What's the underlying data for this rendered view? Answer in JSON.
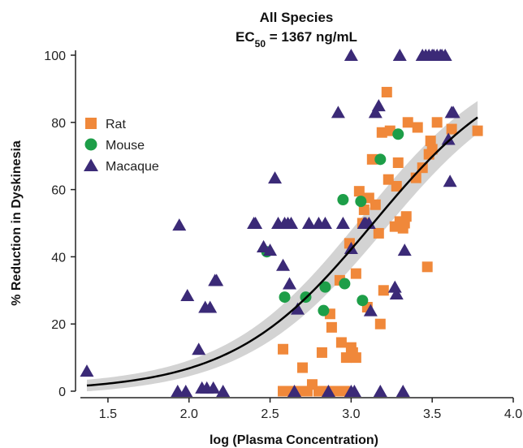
{
  "chart_data": {
    "type": "scatter",
    "title": "All Species",
    "subtitle": {
      "prefix": "EC",
      "subscript": "50",
      "suffix": " = 1367 ng/mL"
    },
    "xlabel": "log (Plasma Concentration)",
    "ylabel": "% Reduction in Dyskinesia",
    "xlim": [
      1.3,
      4.0
    ],
    "ylim": [
      0,
      100
    ],
    "x_ticks": [
      1.5,
      2.0,
      2.5,
      3.0,
      3.5,
      4.0
    ],
    "x_tick_labels": [
      "1.5",
      "2.0",
      "2.5",
      "3.0",
      "3.5",
      "4.0"
    ],
    "y_ticks": [
      0,
      20,
      40,
      60,
      80,
      100
    ],
    "y_tick_labels": [
      "0",
      "20",
      "40",
      "60",
      "80",
      "100"
    ],
    "legend_position": "top-left",
    "fit": {
      "model": "sigmoid",
      "ec50_log": 3.136,
      "hill": 1.0,
      "top": 100,
      "bottom": 0,
      "x_range": [
        1.37,
        3.78
      ],
      "color": "#000000",
      "band_color": "#d3d3d3",
      "band_halfwidth": 5
    },
    "series": [
      {
        "name": "Rat",
        "marker": "square",
        "color": "#f0883a",
        "points": [
          [
            2.58,
            12.5
          ],
          [
            2.58,
            0
          ],
          [
            2.63,
            0
          ],
          [
            2.68,
            0
          ],
          [
            2.7,
            7
          ],
          [
            2.73,
            0
          ],
          [
            2.76,
            2
          ],
          [
            2.8,
            0
          ],
          [
            2.82,
            11.5
          ],
          [
            2.85,
            0
          ],
          [
            2.87,
            23
          ],
          [
            2.88,
            19
          ],
          [
            2.91,
            0
          ],
          [
            2.93,
            33
          ],
          [
            2.94,
            14.5
          ],
          [
            2.96,
            0
          ],
          [
            2.97,
            10
          ],
          [
            2.99,
            44
          ],
          [
            3.0,
            13
          ],
          [
            3.01,
            11.5
          ],
          [
            3.03,
            10
          ],
          [
            3.03,
            35
          ],
          [
            3.05,
            59.5
          ],
          [
            3.07,
            50
          ],
          [
            3.08,
            54
          ],
          [
            3.1,
            25
          ],
          [
            3.11,
            57.5
          ],
          [
            3.13,
            69
          ],
          [
            3.15,
            55.5
          ],
          [
            3.17,
            47
          ],
          [
            3.18,
            20
          ],
          [
            3.19,
            77
          ],
          [
            3.2,
            30
          ],
          [
            3.22,
            89
          ],
          [
            3.23,
            63
          ],
          [
            3.24,
            77.5
          ],
          [
            3.27,
            49
          ],
          [
            3.28,
            61
          ],
          [
            3.29,
            68
          ],
          [
            3.3,
            50.5
          ],
          [
            3.32,
            48.5
          ],
          [
            3.33,
            50
          ],
          [
            3.34,
            52
          ],
          [
            3.35,
            80
          ],
          [
            3.4,
            63.5
          ],
          [
            3.41,
            78.5
          ],
          [
            3.44,
            66.5
          ],
          [
            3.47,
            37
          ],
          [
            3.48,
            70.5
          ],
          [
            3.49,
            74.5
          ],
          [
            3.5,
            72
          ],
          [
            3.53,
            80
          ],
          [
            3.62,
            78
          ],
          [
            3.78,
            77.5
          ]
        ]
      },
      {
        "name": "Mouse",
        "marker": "circle",
        "color": "#1d9e48",
        "points": [
          [
            2.48,
            41.5
          ],
          [
            2.59,
            28
          ],
          [
            2.72,
            28
          ],
          [
            2.83,
            24
          ],
          [
            2.84,
            31
          ],
          [
            2.95,
            57
          ],
          [
            2.96,
            32
          ],
          [
            3.06,
            56.5
          ],
          [
            3.07,
            27
          ],
          [
            3.18,
            69
          ],
          [
            3.29,
            76.5
          ]
        ]
      },
      {
        "name": "Macaque",
        "marker": "triangle",
        "color": "#3b2a77",
        "points": [
          [
            1.37,
            6
          ],
          [
            1.94,
            49.5
          ],
          [
            1.93,
            0
          ],
          [
            1.99,
            28.5
          ],
          [
            1.98,
            0
          ],
          [
            2.06,
            12.5
          ],
          [
            2.08,
            1
          ],
          [
            2.1,
            25
          ],
          [
            2.11,
            1
          ],
          [
            2.13,
            25
          ],
          [
            2.15,
            1
          ],
          [
            2.16,
            33
          ],
          [
            2.17,
            33
          ],
          [
            2.21,
            0
          ],
          [
            2.4,
            50
          ],
          [
            2.41,
            50
          ],
          [
            2.46,
            43
          ],
          [
            2.46,
            43
          ],
          [
            2.5,
            42
          ],
          [
            2.53,
            63.5
          ],
          [
            2.55,
            50
          ],
          [
            2.58,
            37.5
          ],
          [
            2.59,
            50
          ],
          [
            2.61,
            50
          ],
          [
            2.62,
            32
          ],
          [
            2.63,
            50
          ],
          [
            2.65,
            0
          ],
          [
            2.67,
            24.5
          ],
          [
            2.74,
            50
          ],
          [
            2.8,
            50
          ],
          [
            2.84,
            50
          ],
          [
            2.86,
            0
          ],
          [
            2.92,
            83
          ],
          [
            2.95,
            50
          ],
          [
            3.0,
            0
          ],
          [
            3.0,
            42.5
          ],
          [
            3.0,
            100
          ],
          [
            3.02,
            0
          ],
          [
            3.08,
            50
          ],
          [
            3.09,
            50
          ],
          [
            3.11,
            50
          ],
          [
            3.12,
            24
          ],
          [
            3.15,
            83
          ],
          [
            3.17,
            85
          ],
          [
            3.18,
            0
          ],
          [
            3.27,
            31
          ],
          [
            3.28,
            29
          ],
          [
            3.3,
            100
          ],
          [
            3.32,
            0
          ],
          [
            3.33,
            42
          ],
          [
            3.44,
            100
          ],
          [
            3.46,
            100
          ],
          [
            3.48,
            100
          ],
          [
            3.5,
            100
          ],
          [
            3.51,
            100
          ],
          [
            3.53,
            100
          ],
          [
            3.55,
            100
          ],
          [
            3.56,
            100
          ],
          [
            3.58,
            100
          ],
          [
            3.6,
            75
          ],
          [
            3.61,
            62.5
          ],
          [
            3.62,
            83
          ],
          [
            3.63,
            83
          ]
        ]
      }
    ]
  }
}
